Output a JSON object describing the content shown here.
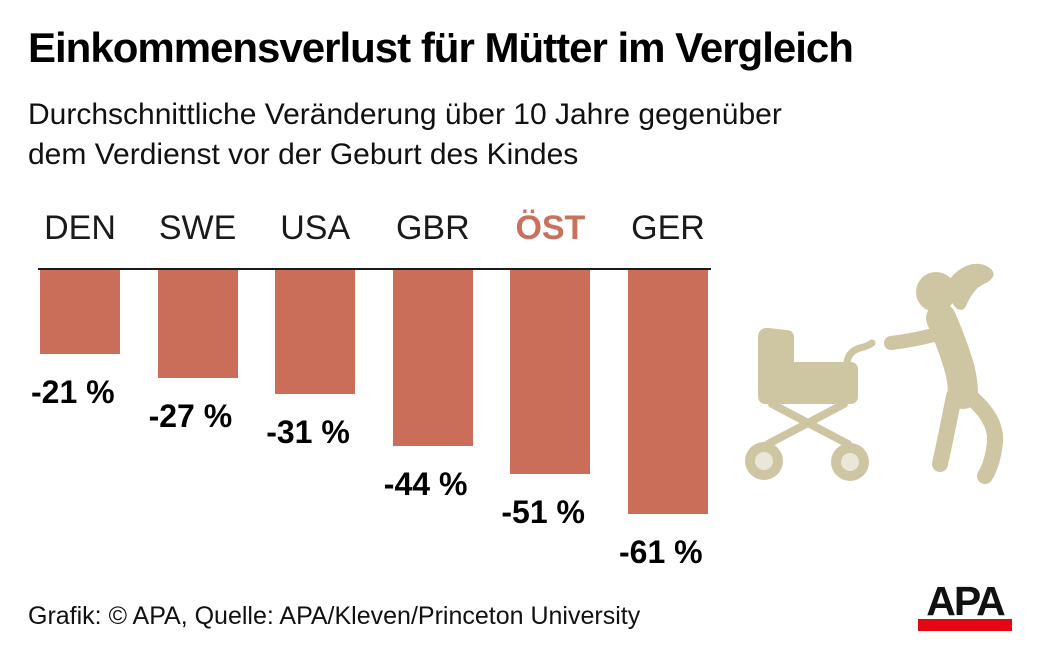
{
  "header": {
    "title": "Einkommensverlust für Mütter im Vergleich",
    "subtitle_line1": "Durchschnittliche Veränderung über 10 Jahre gegenüber",
    "subtitle_line2": "dem Verdienst vor der Geburt des Kindes"
  },
  "chart_data": {
    "type": "bar",
    "categories": [
      "DEN",
      "SWE",
      "USA",
      "GBR",
      "ÖST",
      "GER"
    ],
    "values": [
      -21,
      -27,
      -31,
      -44,
      -51,
      -61
    ],
    "value_suffix": " %",
    "unit": "percent",
    "baseline_value": 0,
    "highlight_category": "ÖST",
    "bar_color": "#CB6E59",
    "highlight_label_color": "#C8715C",
    "orientation": "vertical-downward",
    "grid": false,
    "legend": false
  },
  "illustration": {
    "name": "mother-pushing-pram-pictogram",
    "color": "#CEC6A2",
    "hub_color": "#EAE7D8"
  },
  "footer": {
    "credit": "Grafik: © APA, Quelle: APA/Kleven/Princeton University",
    "logo_text": "APA",
    "logo_bar_color": "#E30613"
  }
}
